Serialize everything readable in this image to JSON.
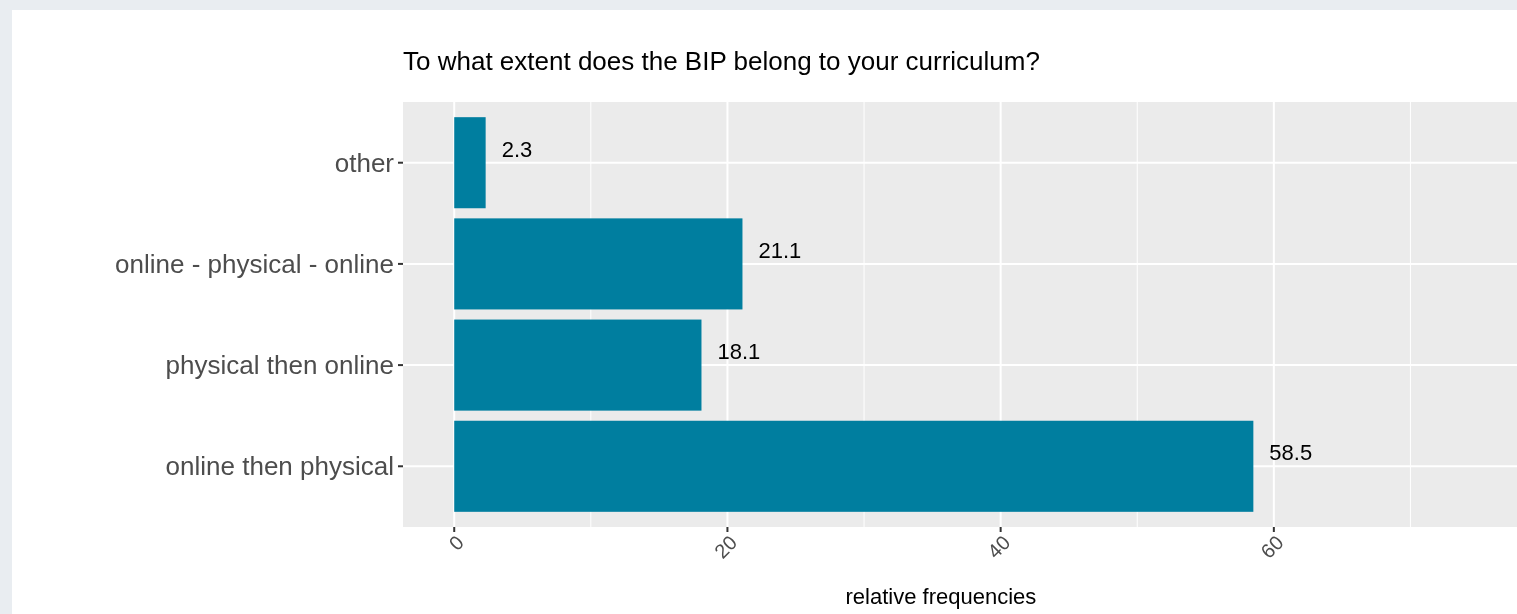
{
  "chart_data": {
    "type": "bar",
    "orientation": "horizontal",
    "title": "To what extent does the BIP belong to your curriculum?",
    "xlabel": "relative frequencies",
    "categories": [
      "other",
      "online - physical - online",
      "physical then online",
      "online then physical"
    ],
    "values": [
      2.3,
      21.1,
      18.1,
      58.5
    ],
    "color": "#007e9f",
    "data_labels": true,
    "xlim": [
      -3.75,
      77.8
    ],
    "xticks": [
      0,
      {
        "value": 10,
        "label": null
      },
      20,
      {
        "value": 30,
        "label": null
      },
      40,
      {
        "value": 50,
        "label": null
      },
      60,
      {
        "value": 70,
        "label": null
      }
    ],
    "grid": true
  }
}
